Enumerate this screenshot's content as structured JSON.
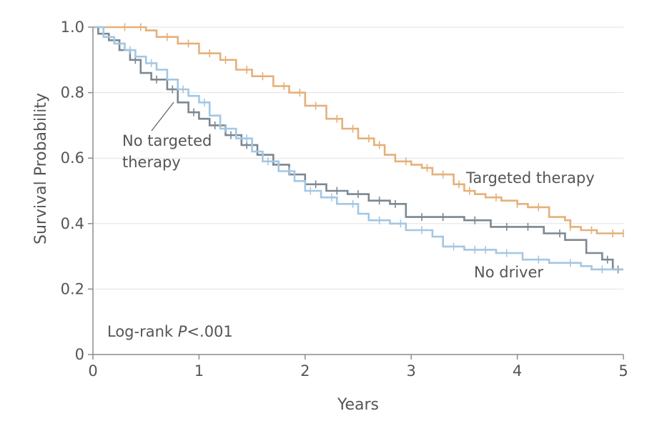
{
  "chart_data": {
    "type": "line",
    "title": "",
    "xlabel": "Years",
    "ylabel": "Survival Probability",
    "xlim": [
      0,
      5
    ],
    "ylim": [
      0,
      1.0
    ],
    "x_ticks": [
      0,
      1,
      2,
      3,
      4,
      5
    ],
    "x_tick_labels": [
      "0",
      "1",
      "2",
      "3",
      "4",
      "5"
    ],
    "y_ticks": [
      0,
      0.2,
      0.4,
      0.6,
      0.8,
      1.0
    ],
    "y_tick_labels": [
      "0",
      "0.2",
      "0.4",
      "0.6",
      "0.8",
      "1.0"
    ],
    "grid": "horizontal",
    "annotation": {
      "prefix": "Log-rank ",
      "italic": "P",
      "suffix": "<.001"
    },
    "series": [
      {
        "name": "Targeted therapy",
        "label_lines": [
          "Targeted therapy"
        ],
        "color": "#e5b07a",
        "steps": [
          [
            0,
            1.0
          ],
          [
            0.5,
            0.99
          ],
          [
            0.6,
            0.97
          ],
          [
            0.8,
            0.95
          ],
          [
            1.0,
            0.92
          ],
          [
            1.2,
            0.9
          ],
          [
            1.35,
            0.87
          ],
          [
            1.5,
            0.85
          ],
          [
            1.7,
            0.82
          ],
          [
            1.85,
            0.8
          ],
          [
            2.0,
            0.76
          ],
          [
            2.2,
            0.72
          ],
          [
            2.35,
            0.69
          ],
          [
            2.5,
            0.66
          ],
          [
            2.65,
            0.64
          ],
          [
            2.75,
            0.61
          ],
          [
            2.85,
            0.59
          ],
          [
            3.0,
            0.58
          ],
          [
            3.1,
            0.57
          ],
          [
            3.2,
            0.55
          ],
          [
            3.4,
            0.52
          ],
          [
            3.5,
            0.5
          ],
          [
            3.6,
            0.49
          ],
          [
            3.7,
            0.48
          ],
          [
            3.85,
            0.47
          ],
          [
            4.0,
            0.46
          ],
          [
            4.1,
            0.45
          ],
          [
            4.3,
            0.42
          ],
          [
            4.45,
            0.41
          ],
          [
            4.5,
            0.39
          ],
          [
            4.6,
            0.38
          ],
          [
            4.75,
            0.37
          ],
          [
            4.85,
            0.37
          ],
          [
            5.0,
            0.37
          ]
        ],
        "censored": [
          0.3,
          0.45,
          0.7,
          0.9,
          1.1,
          1.25,
          1.45,
          1.6,
          1.8,
          1.95,
          2.1,
          2.3,
          2.45,
          2.6,
          2.7,
          2.95,
          3.15,
          3.3,
          3.45,
          3.55,
          3.8,
          4.0,
          4.2,
          4.5,
          4.7,
          4.9,
          5.0
        ]
      },
      {
        "name": "No targeted therapy",
        "label_lines": [
          "No targeted",
          "therapy"
        ],
        "color": "#7c8891",
        "steps": [
          [
            0,
            1.0
          ],
          [
            0.05,
            0.98
          ],
          [
            0.15,
            0.96
          ],
          [
            0.25,
            0.93
          ],
          [
            0.35,
            0.9
          ],
          [
            0.45,
            0.86
          ],
          [
            0.55,
            0.84
          ],
          [
            0.7,
            0.81
          ],
          [
            0.8,
            0.77
          ],
          [
            0.9,
            0.74
          ],
          [
            1.0,
            0.72
          ],
          [
            1.1,
            0.7
          ],
          [
            1.25,
            0.67
          ],
          [
            1.4,
            0.64
          ],
          [
            1.55,
            0.61
          ],
          [
            1.7,
            0.58
          ],
          [
            1.85,
            0.55
          ],
          [
            2.0,
            0.52
          ],
          [
            2.2,
            0.5
          ],
          [
            2.4,
            0.49
          ],
          [
            2.6,
            0.47
          ],
          [
            2.8,
            0.46
          ],
          [
            2.95,
            0.42
          ],
          [
            3.15,
            0.42
          ],
          [
            3.5,
            0.41
          ],
          [
            3.75,
            0.39
          ],
          [
            4.05,
            0.39
          ],
          [
            4.15,
            0.39
          ],
          [
            4.25,
            0.37
          ],
          [
            4.45,
            0.35
          ],
          [
            4.65,
            0.31
          ],
          [
            4.8,
            0.29
          ],
          [
            4.9,
            0.26
          ],
          [
            5.0,
            0.26
          ]
        ],
        "censored": [
          0.1,
          0.2,
          0.4,
          0.6,
          0.75,
          0.95,
          1.15,
          1.3,
          1.45,
          1.6,
          1.75,
          1.9,
          2.1,
          2.3,
          2.5,
          2.7,
          2.85,
          3.1,
          3.3,
          3.6,
          3.9,
          4.1,
          4.4,
          4.85,
          4.95
        ]
      },
      {
        "name": "No driver",
        "label_lines": [
          "No driver"
        ],
        "color": "#a3c7e3",
        "steps": [
          [
            0,
            1.0
          ],
          [
            0.1,
            0.97
          ],
          [
            0.2,
            0.95
          ],
          [
            0.3,
            0.93
          ],
          [
            0.4,
            0.91
          ],
          [
            0.5,
            0.89
          ],
          [
            0.6,
            0.87
          ],
          [
            0.7,
            0.84
          ],
          [
            0.8,
            0.81
          ],
          [
            0.9,
            0.79
          ],
          [
            1.0,
            0.77
          ],
          [
            1.1,
            0.73
          ],
          [
            1.2,
            0.69
          ],
          [
            1.35,
            0.66
          ],
          [
            1.5,
            0.62
          ],
          [
            1.6,
            0.59
          ],
          [
            1.75,
            0.56
          ],
          [
            1.9,
            0.53
          ],
          [
            2.0,
            0.5
          ],
          [
            2.15,
            0.48
          ],
          [
            2.3,
            0.46
          ],
          [
            2.5,
            0.43
          ],
          [
            2.6,
            0.41
          ],
          [
            2.8,
            0.4
          ],
          [
            2.95,
            0.38
          ],
          [
            3.2,
            0.36
          ],
          [
            3.3,
            0.33
          ],
          [
            3.5,
            0.32
          ],
          [
            3.8,
            0.31
          ],
          [
            4.05,
            0.29
          ],
          [
            4.3,
            0.28
          ],
          [
            4.6,
            0.27
          ],
          [
            4.7,
            0.26
          ],
          [
            5.0,
            0.26
          ]
        ],
        "censored": [
          0.35,
          0.55,
          0.85,
          1.05,
          1.25,
          1.45,
          1.65,
          1.85,
          2.05,
          2.25,
          2.45,
          2.7,
          2.9,
          3.1,
          3.4,
          3.6,
          3.7,
          3.9,
          4.2,
          4.5,
          4.8
        ]
      }
    ]
  }
}
